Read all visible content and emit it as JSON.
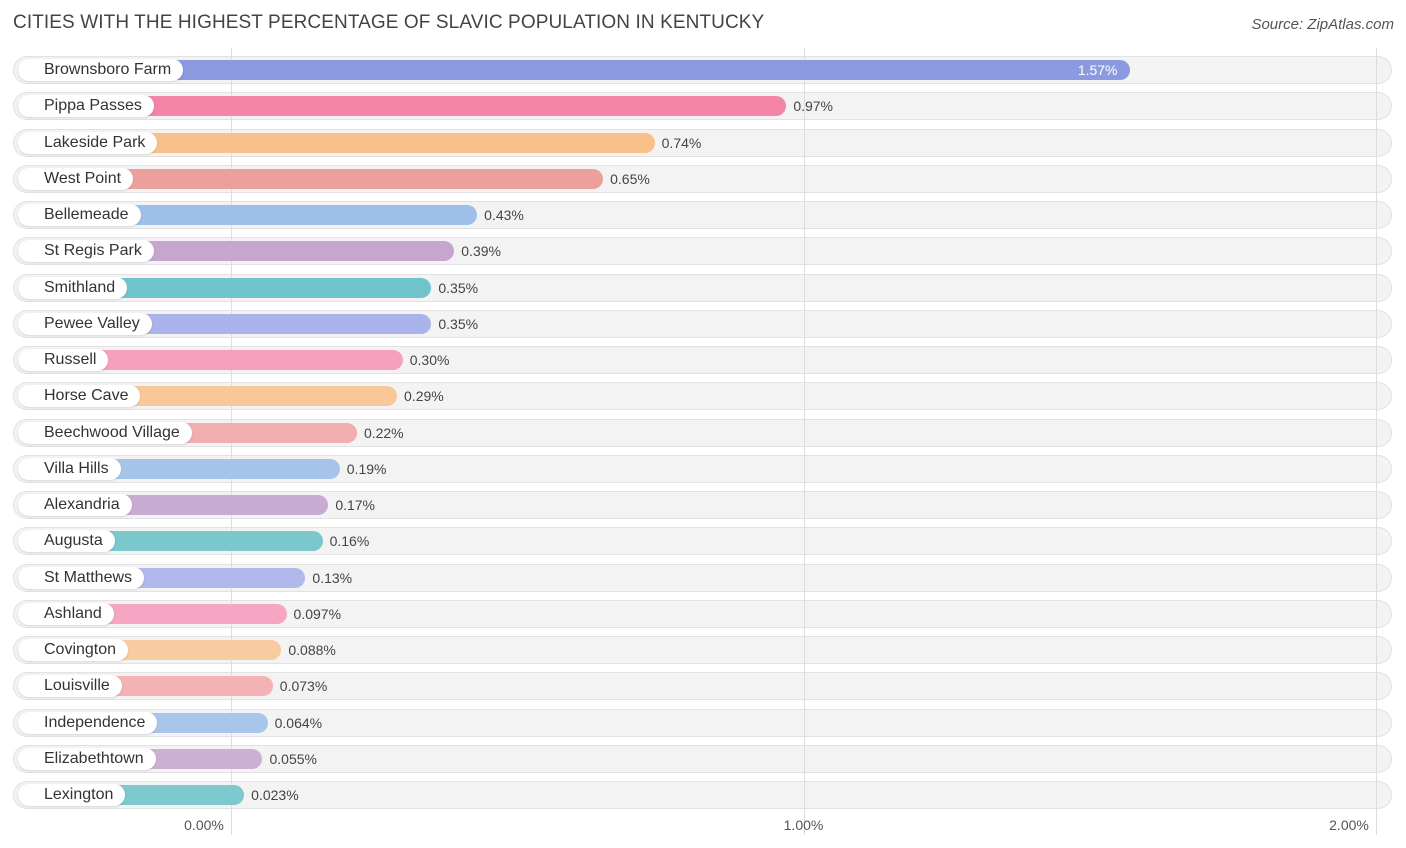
{
  "header": {
    "title": "CITIES WITH THE HIGHEST PERCENTAGE OF SLAVIC POPULATION IN KENTUCKY",
    "source": "Source: ZipAtlas.com"
  },
  "chart_data": {
    "type": "bar",
    "orientation": "horizontal",
    "title": "CITIES WITH THE HIGHEST PERCENTAGE OF SLAVIC POPULATION IN KENTUCKY",
    "xlim": [
      0,
      2.0
    ],
    "grid": true,
    "ticks": [
      {
        "value": 0,
        "label": "0.00%"
      },
      {
        "value": 1.0,
        "label": "1.00%"
      },
      {
        "value": 2.0,
        "label": "2.00%"
      }
    ],
    "categories": [
      "Brownsboro Farm",
      "Pippa Passes",
      "Lakeside Park",
      "West Point",
      "Bellemeade",
      "St Regis Park",
      "Smithland",
      "Pewee Valley",
      "Russell",
      "Horse Cave",
      "Beechwood Village",
      "Villa Hills",
      "Alexandria",
      "Augusta",
      "St Matthews",
      "Ashland",
      "Covington",
      "Louisville",
      "Independence",
      "Elizabethtown",
      "Lexington"
    ],
    "values": [
      1.57,
      0.97,
      0.74,
      0.65,
      0.43,
      0.39,
      0.35,
      0.35,
      0.3,
      0.29,
      0.22,
      0.19,
      0.17,
      0.16,
      0.13,
      0.097,
      0.088,
      0.073,
      0.064,
      0.055,
      0.023
    ],
    "value_labels": [
      "1.57%",
      "0.97%",
      "0.74%",
      "0.65%",
      "0.43%",
      "0.39%",
      "0.35%",
      "0.35%",
      "0.30%",
      "0.29%",
      "0.22%",
      "0.19%",
      "0.17%",
      "0.16%",
      "0.13%",
      "0.097%",
      "0.088%",
      "0.073%",
      "0.064%",
      "0.055%",
      "0.023%"
    ],
    "colors": [
      "#8b9ae0",
      "#f484a8",
      "#f9c08a",
      "#eca09c",
      "#9dbfe8",
      "#c6a6cf",
      "#6fc4c9",
      "#abb4ea",
      "#f7a0bd",
      "#f9c898",
      "#f0aeae",
      "#a6c4ea",
      "#c8abd3",
      "#7ac7cc",
      "#b2b8ec",
      "#f6a6c2",
      "#f9cba0",
      "#f3b2b4",
      "#a8c6ec",
      "#cbb0d4",
      "#7ec9cf"
    ]
  }
}
